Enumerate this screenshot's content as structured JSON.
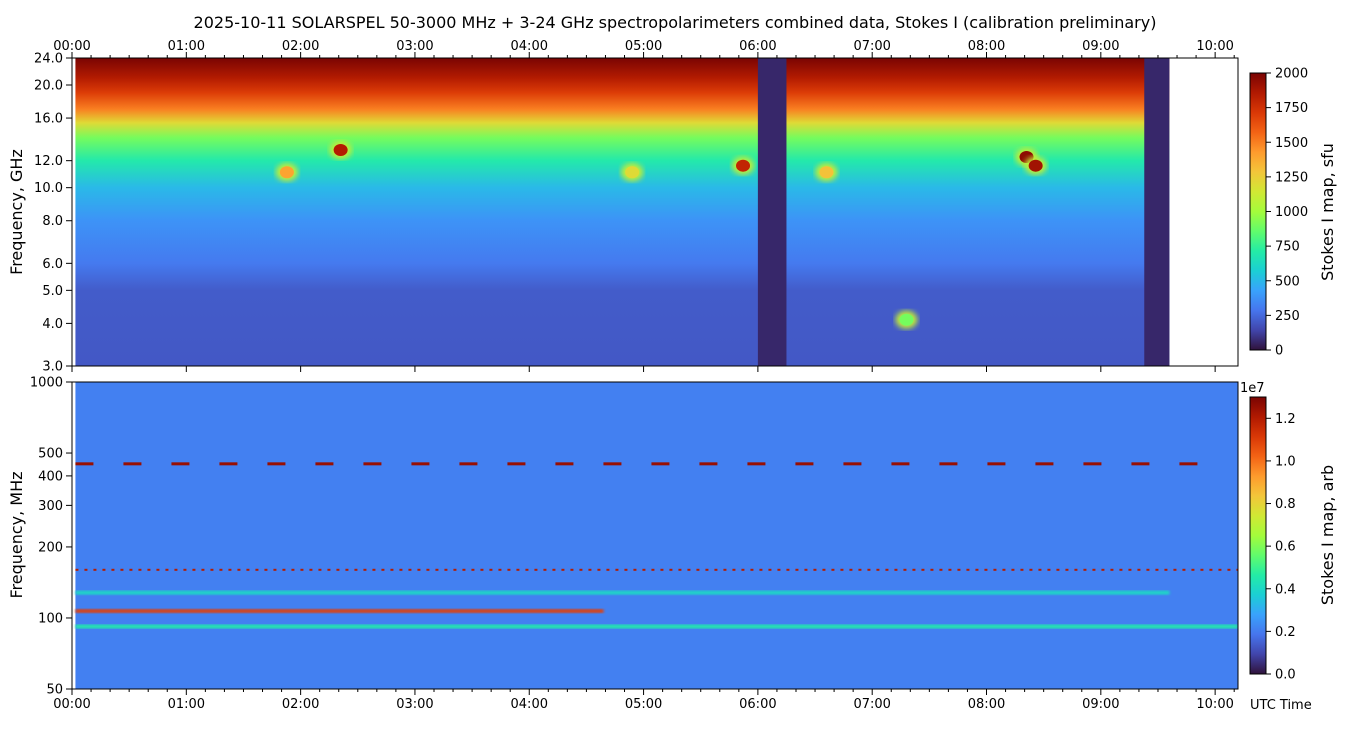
{
  "title": "2025-10-11  SOLARSPEL  50-3000 MHz  +  3-24 GHz  spectropolarimeters combined data,  Stokes I  (calibration preliminary)",
  "time_axis": {
    "ticks": [
      "00:00",
      "01:00",
      "02:00",
      "03:00",
      "04:00",
      "05:00",
      "06:00",
      "07:00",
      "08:00",
      "09:00",
      "10:00"
    ],
    "range_hours": [
      0,
      10.2
    ],
    "xlabel": "UTC Time"
  },
  "colors": {
    "colormap": [
      "#30123b",
      "#4145ab",
      "#4675ed",
      "#39a2fc",
      "#1bcfd4",
      "#24eca6",
      "#61fc6c",
      "#a4fc3b",
      "#d1e834",
      "#f3c63a",
      "#fe9b2d",
      "#f36315",
      "#d93806",
      "#b11901",
      "#7a0403"
    ]
  },
  "chart_data": [
    {
      "type": "heatmap",
      "panel": "high-frequency spectrogram",
      "ylabel": "Frequency, GHz",
      "yscale": "log",
      "ylim": [
        3.0,
        24.0
      ],
      "yticks": [
        "3.0",
        "4.0",
        "5.0",
        "6.0",
        "8.0",
        "10.0",
        "12.0",
        "16.0",
        "20.0",
        "24.0"
      ],
      "colorbar": {
        "label": "Stokes I map, sfu",
        "range": [
          0,
          2000
        ],
        "ticks": [
          "0",
          "250",
          "500",
          "750",
          "1000",
          "1250",
          "1500",
          "1750",
          "2000"
        ]
      },
      "data_coverage_hours": [
        0.03,
        9.6
      ],
      "gaps_hours": [
        [
          6.0,
          6.25
        ],
        [
          9.38,
          9.6
        ]
      ],
      "bursts": [
        {
          "t": 2.35,
          "f_ghz": 12.9,
          "level": 1850
        },
        {
          "t": 1.88,
          "f_ghz": 11.1,
          "level": 1400
        },
        {
          "t": 5.87,
          "f_ghz": 11.6,
          "level": 1800
        },
        {
          "t": 8.35,
          "f_ghz": 12.3,
          "level": 1950
        },
        {
          "t": 8.43,
          "f_ghz": 11.6,
          "level": 1900
        },
        {
          "t": 6.6,
          "f_ghz": 11.1,
          "level": 1300
        },
        {
          "t": 4.9,
          "f_ghz": 11.1,
          "level": 1200
        },
        {
          "t": 7.3,
          "f_ghz": 4.1,
          "level": 900
        }
      ]
    },
    {
      "type": "heatmap",
      "panel": "low-frequency spectrogram",
      "ylabel": "Frequency, MHz",
      "yscale": "log",
      "ylim": [
        50,
        1000
      ],
      "yticks": [
        "50",
        "100",
        "200",
        "300",
        "400",
        "500",
        "1000"
      ],
      "colorbar": {
        "label": "Stokes I map, arb",
        "range": [
          0.0,
          1.3
        ],
        "exponent": "1e7",
        "ticks": [
          "0.0",
          "0.2",
          "0.4",
          "0.6",
          "0.8",
          "1.0",
          "1.2"
        ]
      },
      "data_coverage_hours": [
        0.03,
        10.2
      ],
      "features": [
        {
          "desc": "strong band",
          "f_mhz": 107,
          "t_range": [
            0.03,
            4.65
          ],
          "level": 1.1
        },
        {
          "desc": "band",
          "f_mhz": 92,
          "t_range": [
            0.03,
            10.2
          ],
          "level": 0.45
        },
        {
          "desc": "band",
          "f_mhz": 128,
          "t_range": [
            0.03,
            9.6
          ],
          "level": 0.4
        },
        {
          "desc": "red segments",
          "f_mhz": 450,
          "t_range": [
            0.03,
            9.9
          ],
          "level": 1.25
        },
        {
          "desc": "red dotted",
          "f_mhz": 160,
          "t_range": [
            0.03,
            10.2
          ],
          "level": 1.2
        }
      ]
    }
  ]
}
